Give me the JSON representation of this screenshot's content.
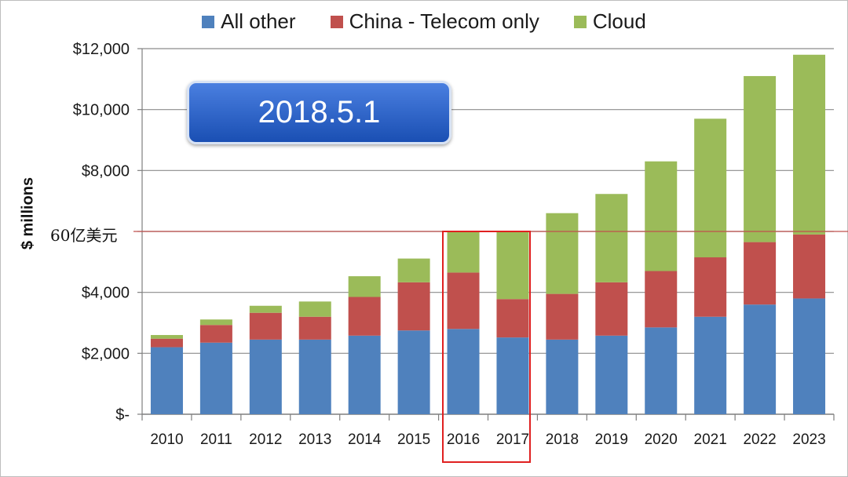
{
  "legend": {
    "items": [
      {
        "label": "All other",
        "color": "#4f81bd"
      },
      {
        "label": "China - Telecom only",
        "color": "#c0504d"
      },
      {
        "label": "Cloud",
        "color": "#9bbb59"
      }
    ]
  },
  "annotations": {
    "callout_text": "2018.5.1",
    "reference_line_label": "60亿美元",
    "reference_line_value": 6000,
    "reference_line_color": "#c0504d",
    "highlight_color": "#e02020"
  },
  "chart_data": {
    "type": "bar",
    "stacked": true,
    "title": "",
    "xlabel": "",
    "ylabel": "$ millions",
    "ylim": [
      0,
      12000
    ],
    "yticks": [
      0,
      2000,
      4000,
      6000,
      8000,
      10000,
      12000
    ],
    "yticklabels": [
      "$-",
      "$2,000",
      "$4,000",
      "",
      "$8,000",
      "$10,000",
      "$12,000"
    ],
    "categories": [
      "2010",
      "2011",
      "2012",
      "2013",
      "2014",
      "2015",
      "2016",
      "2017",
      "2018",
      "2019",
      "2020",
      "2021",
      "2022",
      "2023"
    ],
    "series": [
      {
        "name": "All other",
        "color": "#4f81bd",
        "values": [
          2200,
          2350,
          2450,
          2450,
          2580,
          2750,
          2800,
          2520,
          2450,
          2580,
          2850,
          3200,
          3600,
          3800
        ]
      },
      {
        "name": "China - Telecom only",
        "color": "#c0504d",
        "values": [
          280,
          580,
          880,
          750,
          1270,
          1580,
          1850,
          1260,
          1500,
          1750,
          1850,
          1950,
          2050,
          2100
        ]
      },
      {
        "name": "Cloud",
        "color": "#9bbb59",
        "values": [
          120,
          180,
          230,
          500,
          680,
          780,
          1350,
          2220,
          2650,
          2900,
          3600,
          4550,
          5450,
          5900
        ]
      }
    ],
    "highlight_categories": [
      "2016",
      "2017"
    ],
    "grid": true,
    "legend_position": "top"
  }
}
